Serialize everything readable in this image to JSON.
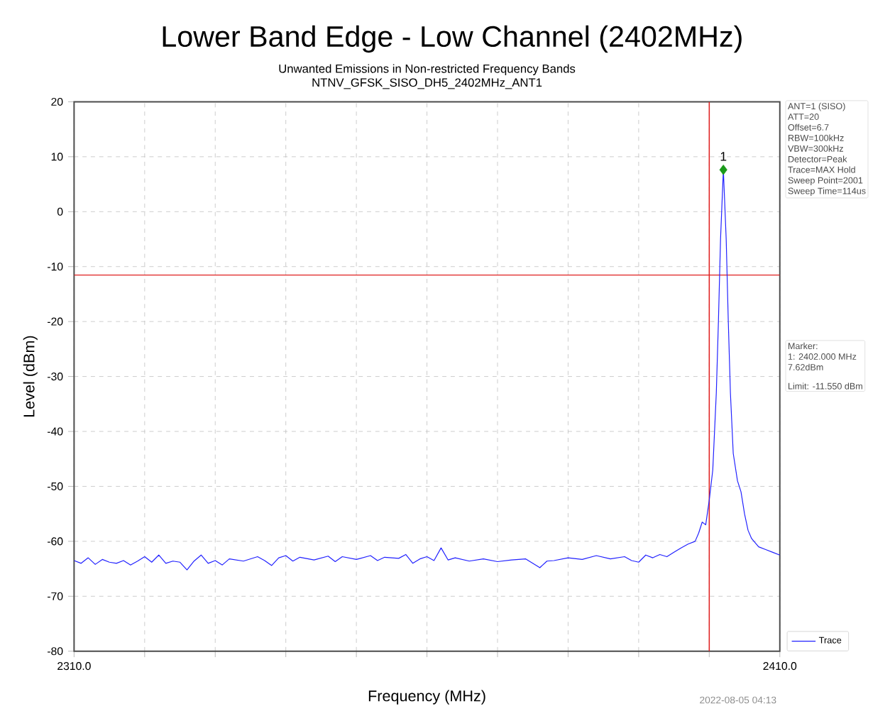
{
  "chart_data": {
    "type": "line",
    "title": "Lower Band Edge - Low Channel (2402MHz)",
    "subtitle": "Unwanted Emissions in Non-restricted Frequency Bands",
    "xlabel": "Frequency (MHz)",
    "ylabel": "Level (dBm)",
    "xlim": [
      2310,
      2410
    ],
    "ylim": [
      -80,
      20
    ],
    "xticks": [
      {
        "value": 2310,
        "label": "2310.0"
      },
      {
        "value": 2320,
        "label": null
      },
      {
        "value": 2330,
        "label": null
      },
      {
        "value": 2340,
        "label": null
      },
      {
        "value": 2350,
        "label": null
      },
      {
        "value": 2360,
        "label": null
      },
      {
        "value": 2370,
        "label": null
      },
      {
        "value": 2380,
        "label": null
      },
      {
        "value": 2390,
        "label": null
      },
      {
        "value": 2400,
        "label": null
      },
      {
        "value": 2410,
        "label": "2410.0"
      }
    ],
    "yticks": [
      -80,
      -70,
      -60,
      -50,
      -40,
      -30,
      -20,
      -10,
      0,
      10,
      20
    ],
    "grid": true,
    "legend": "bottom right",
    "series": [
      {
        "name": "Trace",
        "color": "#2020ff",
        "marker": "none",
        "line_style": "solid",
        "x": [
          2310,
          2311,
          2312,
          2313,
          2314,
          2315,
          2316,
          2317,
          2318,
          2319,
          2320,
          2321,
          2322,
          2323,
          2324,
          2325,
          2326,
          2327,
          2328,
          2329,
          2330,
          2331,
          2332,
          2334,
          2336,
          2337,
          2338,
          2339,
          2340,
          2341,
          2342,
          2344,
          2346,
          2347,
          2348,
          2350,
          2352,
          2353,
          2354,
          2356,
          2357,
          2358,
          2359,
          2360,
          2361,
          2362,
          2363,
          2364,
          2366,
          2368,
          2370,
          2372,
          2374,
          2376,
          2377,
          2378,
          2380,
          2382,
          2384,
          2386,
          2388,
          2389,
          2390,
          2391,
          2392,
          2393,
          2394,
          2395,
          2396,
          2397,
          2398,
          2398.5,
          2399,
          2399.5,
          2400,
          2400.5,
          2401,
          2401.3,
          2401.6,
          2402,
          2402.4,
          2402.7,
          2403,
          2403.4,
          2404,
          2404.5,
          2405,
          2405.5,
          2406,
          2407,
          2408,
          2409,
          2410
        ],
        "values": [
          -63.5,
          -64,
          -63,
          -64.2,
          -63.3,
          -63.8,
          -64,
          -63.5,
          -64.3,
          -63.6,
          -62.8,
          -63.8,
          -62.5,
          -64,
          -63.6,
          -63.8,
          -65.2,
          -63.6,
          -62.5,
          -64,
          -63.5,
          -64.3,
          -63.2,
          -63.6,
          -62.8,
          -63.5,
          -64.4,
          -63,
          -62.6,
          -63.6,
          -62.9,
          -63.4,
          -62.7,
          -63.7,
          -62.8,
          -63.3,
          -62.6,
          -63.5,
          -62.9,
          -63.1,
          -62.4,
          -64,
          -63.2,
          -62.8,
          -63.5,
          -61.2,
          -63.4,
          -63,
          -63.6,
          -63.2,
          -63.7,
          -63.4,
          -63.2,
          -64.8,
          -63.6,
          -63.5,
          -63,
          -63.3,
          -62.6,
          -63.2,
          -62.8,
          -63.5,
          -63.8,
          -62.5,
          -63,
          -62.4,
          -62.8,
          -62,
          -61.2,
          -60.5,
          -60,
          -58.5,
          -56.5,
          -57,
          -52.5,
          -47,
          -33,
          -20,
          -5,
          7.62,
          -5,
          -20,
          -33,
          -44,
          -49,
          -51,
          -55,
          -58,
          -59.5,
          -61,
          -61.5,
          -62,
          -62.5
        ]
      },
      {
        "type": "scatter",
        "color": "#1a9a1a",
        "marker": "diamond",
        "x": [
          2402
        ],
        "values": [
          7.62
        ]
      }
    ],
    "ref_lines": [
      {
        "axis": "x",
        "value": 2400,
        "color": "#e02020"
      },
      {
        "axis": "y",
        "value": -11.55,
        "color": "#e02020"
      }
    ],
    "annotations": [
      "NTNV_GFSK_SISO_DH5_2402MHz_ANT1",
      "ANT=1 (SISO)",
      "ATT=20",
      "Offset=6.7",
      "RBW=100kHz",
      "VBW=300kHz",
      "Detector=Peak",
      "Trace=MAX Hold",
      "Sweep Point=2001",
      "Sweep Time=114us",
      "Marker:",
      "1: 2402.000 MHz",
      "7.62dBm",
      "Limit: -11.550 dBm",
      {
        "text": "1",
        "x": 2402,
        "y": 7.62
      },
      "2022-08-05 04:13"
    ]
  }
}
